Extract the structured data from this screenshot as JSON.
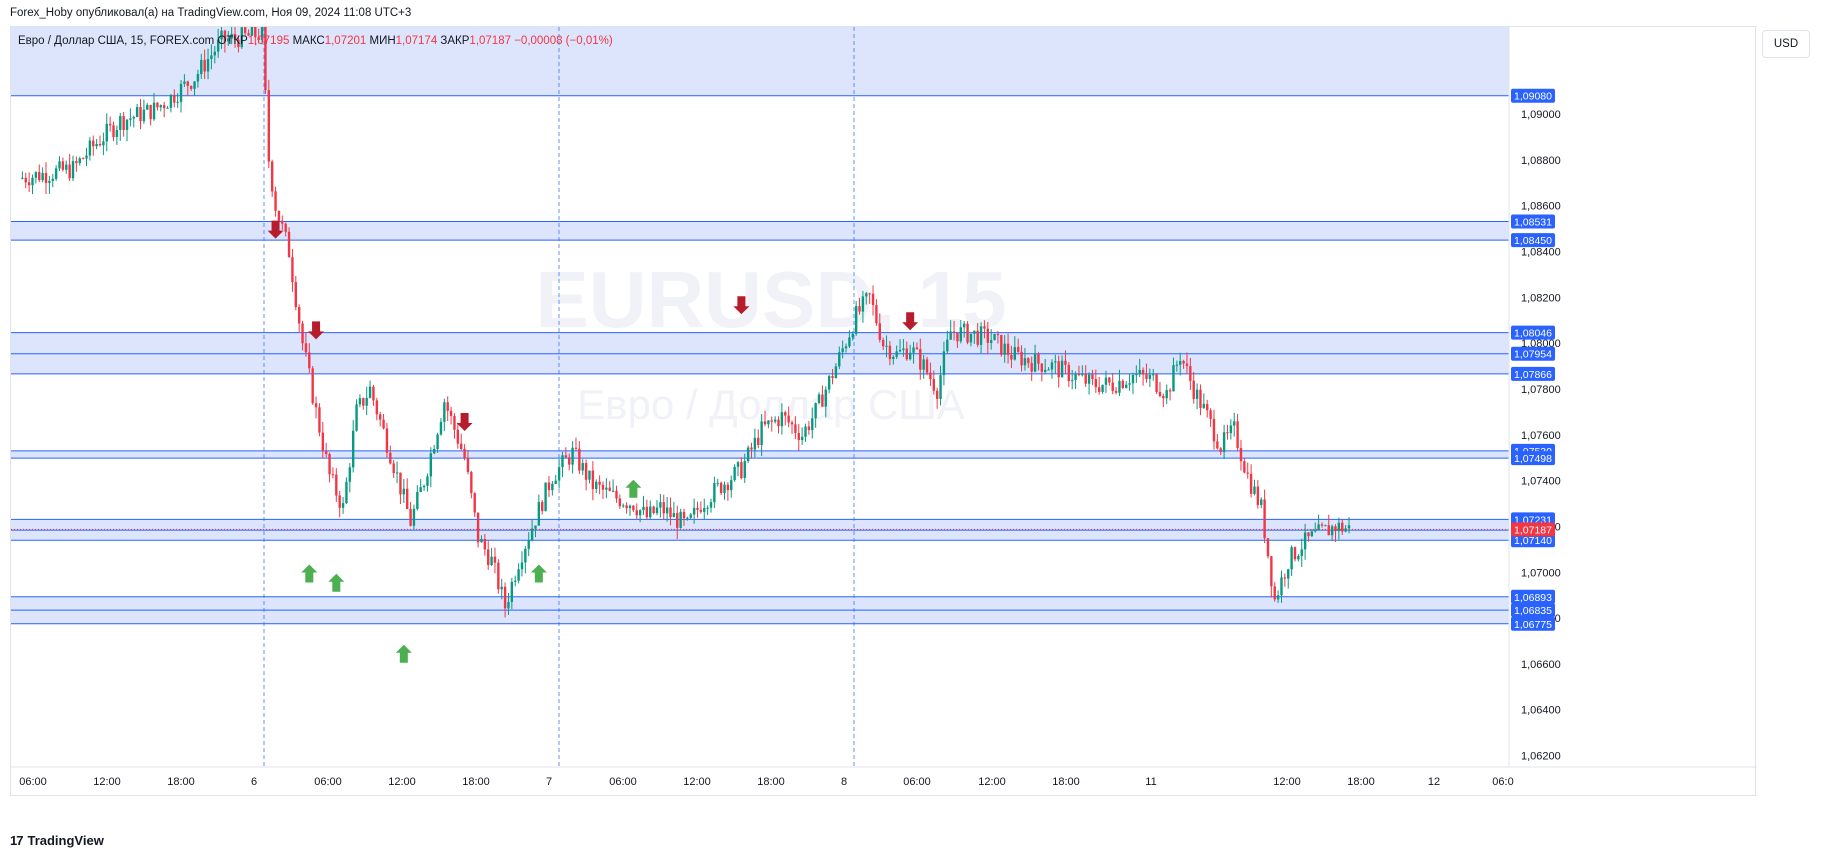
{
  "header": {
    "published_by": "Forex_Hoby опубликовал(а) на TradingView.com, Ноя 09, 2024 11:08 UTC+3"
  },
  "legend": {
    "symbol": "Евро / Доллар США, 15, FOREX.com",
    "open_label": "ОТКР",
    "open_value": "1,07195",
    "high_label": "МАКС",
    "high_value": "1,07201",
    "low_label": "МИН",
    "low_value": "1,07174",
    "close_label": "ЗАКР",
    "close_value": "1,07187",
    "change": "−0,00008 (−0,01%)"
  },
  "currency_button": "USD",
  "watermark": {
    "line1": "EURUSD, 15",
    "line2": "Евро / Доллар США"
  },
  "footer": {
    "logo": "17",
    "brand": "TradingView"
  },
  "colors": {
    "up": "#089981",
    "down": "#f23645",
    "zone_fill": "#d6e0fb",
    "level_line": "#2962ff",
    "price_tag": "#2962ff",
    "last_price_tag": "#f23645",
    "up_arrow": "#4caf50",
    "down_arrow": "#b71c2c",
    "session_line": "#2962ff"
  },
  "chart_data": {
    "type": "candlestick",
    "symbol": "EURUSD",
    "timeframe": "15",
    "ylim": [
      1.0615,
      1.0938
    ],
    "y_ticks": [
      "1,06200",
      "1,06400",
      "1,06600",
      "1,06800",
      "1,07000",
      "1,07200",
      "1,07400",
      "1,07600",
      "1,07800",
      "1,08000",
      "1,08200",
      "1,08400",
      "1,08600",
      "1,08800",
      "1,09000"
    ],
    "x_ticks": [
      "06:00",
      "12:00",
      "18:00",
      "6",
      "06:00",
      "12:00",
      "18:00",
      "7",
      "06:00",
      "12:00",
      "18:00",
      "8",
      "06:00",
      "12:00",
      "18:00",
      "11",
      "12:00",
      "18:00",
      "12",
      "06:0"
    ],
    "day_separators": [
      "6",
      "7",
      "8"
    ],
    "zones": [
      {
        "from": 1.0908,
        "to": 1.0943
      },
      {
        "from": 1.0845,
        "to": 1.08531
      },
      {
        "from": 1.07866,
        "to": 1.08046
      },
      {
        "from": 1.07498,
        "to": 1.0753
      },
      {
        "from": 1.0714,
        "to": 1.07231
      },
      {
        "from": 1.06775,
        "to": 1.06893
      }
    ],
    "levels": [
      "1,09080",
      "1,08531",
      "1,08450",
      "1,08046",
      "1,07954",
      "1,07866",
      "1,07530",
      "1,07498",
      "1,07231",
      "1,07184",
      "1,07140",
      "1,06893",
      "1,06835",
      "1,06775"
    ],
    "last_price": "1,07187",
    "price_path": [
      [
        0,
        1.0872
      ],
      [
        4,
        1.0874
      ],
      [
        8,
        1.0876
      ],
      [
        11,
        1.0886
      ],
      [
        15,
        1.0897
      ],
      [
        20,
        1.0902
      ],
      [
        22,
        1.0906
      ],
      [
        26,
        1.0916
      ],
      [
        30,
        1.0932
      ],
      [
        34,
        1.0934
      ],
      [
        36,
        1.0935
      ],
      [
        37,
        1.088
      ],
      [
        38,
        1.086
      ],
      [
        40,
        1.084
      ],
      [
        42,
        1.08
      ],
      [
        44,
        1.077
      ],
      [
        46,
        1.0742
      ],
      [
        48,
        1.0728
      ],
      [
        50,
        1.077
      ],
      [
        52,
        1.078
      ],
      [
        55,
        1.0752
      ],
      [
        58,
        1.0722
      ],
      [
        60,
        1.074
      ],
      [
        63,
        1.0775
      ],
      [
        66,
        1.075
      ],
      [
        68,
        1.0715
      ],
      [
        70,
        1.0705
      ],
      [
        72,
        1.0685
      ],
      [
        74,
        1.0705
      ],
      [
        76,
        1.072
      ],
      [
        79,
        1.0742
      ],
      [
        82,
        1.0752
      ],
      [
        85,
        1.0738
      ],
      [
        88,
        1.0733
      ],
      [
        91,
        1.073
      ],
      [
        93,
        1.0724
      ],
      [
        95,
        1.0728
      ],
      [
        97,
        1.0724
      ],
      [
        99,
        1.072
      ],
      [
        101,
        1.073
      ],
      [
        104,
        1.0738
      ],
      [
        107,
        1.0745
      ],
      [
        110,
        1.0762
      ],
      [
        113,
        1.0768
      ],
      [
        116,
        1.076
      ],
      [
        118,
        1.077
      ],
      [
        121,
        1.079
      ],
      [
        124,
        1.0812
      ],
      [
        126,
        1.082
      ],
      [
        128,
        1.08
      ],
      [
        130,
        1.0795
      ],
      [
        132,
        1.0798
      ],
      [
        134,
        1.079
      ],
      [
        136,
        1.078
      ],
      [
        138,
        1.0805
      ],
      [
        141,
        1.0804
      ],
      [
        144,
        1.0802
      ],
      [
        147,
        1.0795
      ],
      [
        150,
        1.0792
      ],
      [
        153,
        1.079
      ],
      [
        156,
        1.0786
      ],
      [
        159,
        1.0782
      ],
      [
        162,
        1.0782
      ],
      [
        165,
        1.0786
      ],
      [
        168,
        1.0784
      ],
      [
        170,
        1.0778
      ],
      [
        172,
        1.0795
      ],
      [
        174,
        1.078
      ],
      [
        176,
        1.0768
      ],
      [
        178,
        1.0755
      ],
      [
        180,
        1.0762
      ],
      [
        182,
        1.0742
      ],
      [
        184,
        1.0728
      ],
      [
        186,
        1.0688
      ],
      [
        188,
        1.0705
      ],
      [
        190,
        1.0712
      ],
      [
        192,
        1.0716
      ],
      [
        195,
        1.072
      ],
      [
        197,
        1.0719
      ]
    ],
    "down_arrows_at_price": [
      {
        "i": 38,
        "price": 1.085
      },
      {
        "i": 44,
        "price": 1.0806
      },
      {
        "i": 66,
        "price": 1.0766
      },
      {
        "i": 107,
        "price": 1.0817
      },
      {
        "i": 132,
        "price": 1.081
      }
    ],
    "up_arrows_at_price": [
      {
        "i": 43,
        "price": 1.0699
      },
      {
        "i": 47,
        "price": 1.0695
      },
      {
        "i": 57,
        "price": 1.0664
      },
      {
        "i": 77,
        "price": 1.0699
      },
      {
        "i": 91,
        "price": 1.0736
      }
    ]
  }
}
